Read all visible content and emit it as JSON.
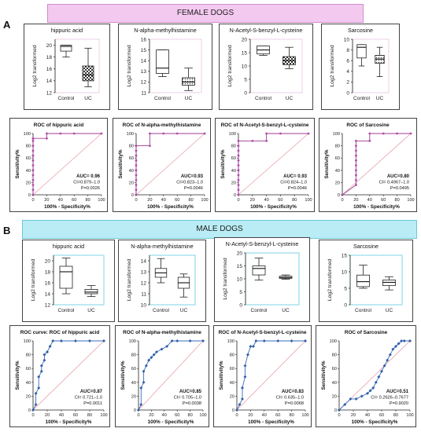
{
  "panels": {
    "A": {
      "letter": "A",
      "banner": "FEMALE DOGS"
    },
    "B": {
      "letter": "B",
      "banner": "MALE DOGS"
    }
  },
  "colors": {
    "female_banner": "#f4c9f0",
    "male_banner": "#b9ecf4",
    "roc_female_marker": "#b04aa8",
    "roc_male_marker": "#2f5fa6",
    "diagonal": "#e8a0a8"
  },
  "chart_data": [
    {
      "id": "f-box-1",
      "panel": "A",
      "type": "box",
      "title": "hippuric acid",
      "ylabel": "Log2 transformed",
      "yticks": [
        12,
        14,
        16,
        18,
        20
      ],
      "ylim": [
        12,
        21
      ],
      "groups": [
        {
          "label": "Control",
          "min": 18,
          "q1": 19,
          "median": 19.8,
          "q3": 20,
          "max": 20
        },
        {
          "label": "UC",
          "min": 13,
          "q1": 14,
          "median": 15,
          "q3": 16.5,
          "max": 19.5
        }
      ]
    },
    {
      "id": "f-box-2",
      "panel": "A",
      "type": "box",
      "title": "N-alpha-methylhistamine",
      "ylabel": "Log2 transformed",
      "yticks": [
        11,
        12,
        13,
        14,
        15,
        16
      ],
      "ylim": [
        11,
        16
      ],
      "groups": [
        {
          "label": "Control",
          "min": 12.5,
          "q1": 12.8,
          "median": 13.3,
          "q3": 15,
          "max": 15
        },
        {
          "label": "UC",
          "min": 11.2,
          "q1": 11.7,
          "median": 12,
          "q3": 12.4,
          "max": 13.3
        }
      ]
    },
    {
      "id": "f-box-3",
      "panel": "A",
      "type": "box",
      "title": "N-Acetyl-S-benzyl-L-cysteine",
      "ylabel": "Log2 transformed",
      "yticks": [
        0,
        5,
        10,
        15,
        20
      ],
      "ylim": [
        0,
        20
      ],
      "groups": [
        {
          "label": "Control",
          "min": 14,
          "q1": 14.5,
          "median": 16,
          "q3": 17.5,
          "max": 17.5
        },
        {
          "label": "UC",
          "min": 9,
          "q1": 10.5,
          "median": 12,
          "q3": 13.5,
          "max": 17
        }
      ]
    },
    {
      "id": "f-box-4",
      "panel": "A",
      "type": "box",
      "title": "Sarcosine",
      "ylabel": "Log2 transformed",
      "yticks": [
        0,
        2,
        4,
        6,
        8,
        10
      ],
      "ylim": [
        0,
        10
      ],
      "groups": [
        {
          "label": "Control",
          "min": 5,
          "q1": 6.5,
          "median": 8.5,
          "q3": 9,
          "max": 9
        },
        {
          "label": "UC",
          "min": 3,
          "q1": 5.5,
          "median": 6.3,
          "q3": 7,
          "max": 8.5
        }
      ]
    },
    {
      "id": "f-roc-1",
      "panel": "A",
      "type": "line",
      "title": "ROC of hippuric acid",
      "xlabel": "100% - Specificity%",
      "ylabel": "Sensitivity%",
      "xticks": [
        0,
        20,
        40,
        60,
        80,
        100
      ],
      "yticks": [
        0,
        20,
        40,
        60,
        80,
        100
      ],
      "xlim": [
        0,
        100
      ],
      "ylim": [
        0,
        100
      ],
      "x": [
        0,
        0,
        0,
        0,
        0,
        0,
        0,
        0,
        0,
        0,
        0,
        0,
        0,
        0,
        20,
        20,
        40,
        60,
        100
      ],
      "y": [
        0,
        8,
        16,
        24,
        32,
        40,
        48,
        56,
        64,
        72,
        80,
        88,
        92,
        92,
        92,
        100,
        100,
        100,
        100
      ],
      "annotation": [
        "AUC= 0.96",
        "CI=0.879–1.0",
        "P=0.0026"
      ]
    },
    {
      "id": "f-roc-2",
      "panel": "A",
      "type": "line",
      "title": "ROC of N-alpha-methylhistamine",
      "xlabel": "100% - Specificity%",
      "ylabel": "Sensitivity%",
      "xticks": [
        0,
        20,
        40,
        60,
        80,
        100
      ],
      "yticks": [
        0,
        20,
        40,
        60,
        80,
        100
      ],
      "xlim": [
        0,
        100
      ],
      "ylim": [
        0,
        100
      ],
      "x": [
        0,
        0,
        0,
        0,
        0,
        0,
        0,
        0,
        0,
        0,
        0,
        0,
        20,
        20,
        40,
        60,
        100
      ],
      "y": [
        0,
        8,
        16,
        24,
        32,
        40,
        48,
        56,
        64,
        72,
        80,
        80,
        80,
        100,
        100,
        100,
        100
      ],
      "annotation": [
        "AUC=0.93",
        "CI=0.823–1.0",
        "P=0.0046"
      ]
    },
    {
      "id": "f-roc-3",
      "panel": "A",
      "type": "line",
      "title": "ROC of N-Acetyl-S-benzyl-L-cysteine",
      "xlabel": "100% - Specificity%",
      "ylabel": "Sensitivity%",
      "xticks": [
        0,
        20,
        40,
        60,
        80,
        100
      ],
      "yticks": [
        0,
        20,
        40,
        60,
        80,
        100
      ],
      "xlim": [
        0,
        100
      ],
      "ylim": [
        0,
        100
      ],
      "x": [
        0,
        0,
        0,
        0,
        0,
        0,
        0,
        0,
        0,
        0,
        0,
        0,
        20,
        40,
        40,
        60,
        100
      ],
      "y": [
        0,
        8,
        16,
        24,
        32,
        40,
        48,
        56,
        64,
        72,
        80,
        88,
        88,
        88,
        100,
        100,
        100
      ],
      "annotation": [
        "AUC= 0.93",
        "CI=0.824–1.0",
        "P=0.0046"
      ]
    },
    {
      "id": "f-roc-4",
      "panel": "A",
      "type": "line",
      "title": "ROC of Sarcosine",
      "xlabel": "100% - Specificity%",
      "ylabel": "Sensitivity%",
      "xticks": [
        0,
        20,
        40,
        60,
        80,
        100
      ],
      "yticks": [
        0,
        20,
        40,
        60,
        80,
        100
      ],
      "xlim": [
        0,
        100
      ],
      "ylim": [
        0,
        100
      ],
      "x": [
        0,
        20,
        20,
        20,
        20,
        20,
        20,
        20,
        20,
        20,
        20,
        40,
        40,
        60,
        80,
        100
      ],
      "y": [
        0,
        16,
        24,
        32,
        40,
        48,
        56,
        64,
        72,
        80,
        88,
        88,
        100,
        100,
        100,
        100
      ],
      "annotation": [
        "AUC=0.80",
        "CI= 0.4967–1.0",
        "P=0.0495"
      ]
    },
    {
      "id": "m-box-1",
      "panel": "B",
      "type": "box",
      "title": "hippuric acid",
      "ylabel": "Log2 transformed",
      "yticks": [
        12,
        14,
        16,
        18,
        20
      ],
      "ylim": [
        12,
        21
      ],
      "groups": [
        {
          "label": "Control",
          "min": 14,
          "q1": 15,
          "median": 18,
          "q3": 19,
          "max": 20.5
        },
        {
          "label": "UC",
          "min": 13.5,
          "q1": 14,
          "median": 14.3,
          "q3": 14.8,
          "max": 15.5
        }
      ]
    },
    {
      "id": "m-box-2",
      "panel": "B",
      "type": "box",
      "title": "N-alpha-methylhistamine",
      "ylabel": "Log2 transformed",
      "yticks": [
        10,
        11,
        12,
        13,
        14
      ],
      "ylim": [
        10,
        14.5
      ],
      "groups": [
        {
          "label": "Control",
          "min": 12,
          "q1": 12.5,
          "median": 12.9,
          "q3": 13.3,
          "max": 14.2
        },
        {
          "label": "UC",
          "min": 10.7,
          "q1": 11.5,
          "median": 12,
          "q3": 12.5,
          "max": 12.8
        }
      ]
    },
    {
      "id": "m-box-3",
      "panel": "B",
      "type": "box",
      "title": "N-Acetyl-S-benzyl-L-cysteine",
      "ylabel": "Log2 transformed",
      "yticks": [
        0,
        5,
        10,
        15,
        20
      ],
      "ylim": [
        0,
        20
      ],
      "groups": [
        {
          "label": "Control",
          "min": 9.5,
          "q1": 11.5,
          "median": 14,
          "q3": 15,
          "max": 18
        },
        {
          "label": "UC",
          "min": 9.8,
          "q1": 10.2,
          "median": 10.5,
          "q3": 11,
          "max": 11.5
        }
      ]
    },
    {
      "id": "m-box-4",
      "panel": "B",
      "type": "box",
      "title": "Sarcosine",
      "ylabel": "Log2 transformed",
      "yticks": [
        0,
        5,
        10,
        15
      ],
      "ylim": [
        0,
        15
      ],
      "groups": [
        {
          "label": "Control",
          "min": 5,
          "q1": 5.5,
          "median": 7,
          "q3": 9,
          "max": 12
        },
        {
          "label": "UC",
          "min": 4.5,
          "q1": 5.8,
          "median": 6.8,
          "q3": 7.5,
          "max": 8.5
        }
      ]
    },
    {
      "id": "m-roc-1",
      "panel": "B",
      "type": "line",
      "title": "ROC curve: ROC of hippuric acid",
      "xlabel": "100% - Specificity%",
      "ylabel": "Sensitivity%",
      "xticks": [
        0,
        20,
        40,
        60,
        80,
        100
      ],
      "yticks": [
        0,
        20,
        40,
        60,
        80,
        100
      ],
      "xlim": [
        0,
        100
      ],
      "ylim": [
        0,
        100
      ],
      "x": [
        0,
        4,
        4,
        8,
        8,
        12,
        12,
        16,
        16,
        20,
        24,
        28,
        40,
        60,
        80,
        100
      ],
      "y": [
        0,
        8,
        24,
        32,
        48,
        56,
        64,
        72,
        80,
        84,
        92,
        100,
        100,
        100,
        100,
        100
      ],
      "annotation": [
        "AUC=0.87",
        "CI= 0.721–1.0",
        "P=0.0011"
      ]
    },
    {
      "id": "m-roc-2",
      "panel": "B",
      "type": "line",
      "title": "ROC of N-alpha-methylhistamine",
      "xlabel": "100% - Specificity%",
      "ylabel": "Sensitivity%",
      "xticks": [
        0,
        20,
        40,
        60,
        80,
        100
      ],
      "yticks": [
        0,
        20,
        40,
        60,
        80,
        100
      ],
      "xlim": [
        0,
        100
      ],
      "ylim": [
        0,
        100
      ],
      "x": [
        0,
        4,
        4,
        8,
        8,
        12,
        16,
        20,
        24,
        28,
        36,
        44,
        52,
        60,
        80,
        100
      ],
      "y": [
        0,
        8,
        32,
        40,
        56,
        64,
        72,
        76,
        80,
        84,
        88,
        92,
        100,
        100,
        100,
        100
      ],
      "annotation": [
        "AUC=0.85",
        "CI= 0.705–1.0",
        "P=0.0038"
      ]
    },
    {
      "id": "m-roc-3",
      "panel": "B",
      "type": "line",
      "title": "ROC of N-Acetyl-S-benzyl-L-cysteine",
      "xlabel": "100% - Specificity%",
      "ylabel": "Sensitivity%",
      "xticks": [
        0,
        20,
        40,
        60,
        80,
        100
      ],
      "yticks": [
        0,
        20,
        40,
        60,
        80,
        100
      ],
      "xlim": [
        0,
        100
      ],
      "ylim": [
        0,
        100
      ],
      "x": [
        0,
        4,
        8,
        8,
        12,
        12,
        16,
        20,
        24,
        28,
        40,
        60,
        80,
        100
      ],
      "y": [
        0,
        8,
        16,
        32,
        48,
        64,
        80,
        92,
        92,
        100,
        100,
        100,
        100,
        100
      ],
      "annotation": [
        "AUC=0.83",
        "CI= 0.635–1.0",
        "P=0.0068"
      ]
    },
    {
      "id": "m-roc-4",
      "panel": "B",
      "type": "line",
      "title": "ROC of Sarcosine",
      "xlabel": "100% - Specificity%",
      "ylabel": "Sensitivity%",
      "xticks": [
        0,
        20,
        40,
        60,
        80,
        100
      ],
      "yticks": [
        0,
        20,
        40,
        60,
        80,
        100
      ],
      "xlim": [
        0,
        100
      ],
      "ylim": [
        0,
        100
      ],
      "x": [
        0,
        8,
        16,
        24,
        32,
        40,
        44,
        48,
        52,
        56,
        60,
        64,
        68,
        72,
        76,
        80,
        84,
        88,
        92,
        100
      ],
      "y": [
        0,
        8,
        16,
        16,
        20,
        24,
        28,
        32,
        40,
        48,
        56,
        64,
        72,
        80,
        88,
        92,
        96,
        100,
        100,
        100
      ],
      "annotation": [
        "AUC=0.51",
        "CI= 0.2626–0.7677",
        "P=0.9020"
      ]
    }
  ]
}
